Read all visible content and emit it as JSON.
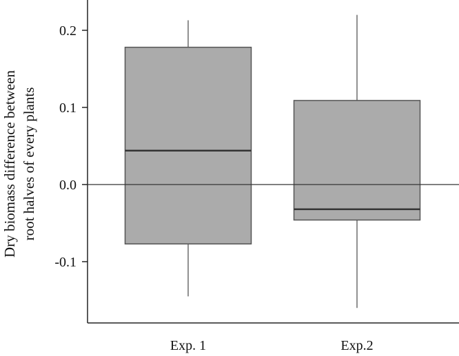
{
  "chart_data": {
    "type": "box",
    "title": "",
    "xlabel": "",
    "ylabel_lines": [
      "Dry biomass difference between",
      "root halves of every plants"
    ],
    "categories": [
      "Exp. 1",
      "Exp.2"
    ],
    "yticks": [
      {
        "value": 0.2,
        "label": "0.2"
      },
      {
        "value": 0.1,
        "label": "0.1"
      },
      {
        "value": 0.0,
        "label": "0.0"
      },
      {
        "value": -0.1,
        "label": "-0.1"
      }
    ],
    "ylim": [
      -0.18,
      0.24
    ],
    "reference_line": 0.0,
    "boxes": [
      {
        "category": "Exp. 1",
        "whisker_low": -0.145,
        "q1": -0.077,
        "median": 0.044,
        "q3": 0.178,
        "whisker_high": 0.213
      },
      {
        "category": "Exp.2",
        "whisker_low": -0.16,
        "q1": -0.046,
        "median": -0.032,
        "q3": 0.109,
        "whisker_high": 0.22
      }
    ],
    "box_fill": "#ababab",
    "line_color": "#555555",
    "grid": false,
    "legend": false
  }
}
